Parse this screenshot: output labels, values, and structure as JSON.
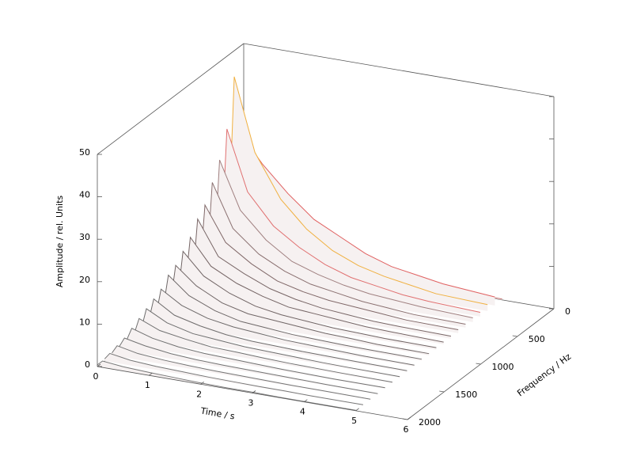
{
  "chart_data": {
    "type": "waterfall",
    "xlabel": "Time / s",
    "ylabel": "Frequency / Hz",
    "zlabel": "Amplitude / rel. Units",
    "xlim": [
      0,
      6
    ],
    "xticks": [
      0,
      1,
      2,
      3,
      4,
      5,
      6
    ],
    "ylim": [
      0,
      2000
    ],
    "yticks": [
      0,
      500,
      1000,
      1500,
      2000
    ],
    "zlim": [
      0,
      50
    ],
    "zticks": [
      0,
      10,
      20,
      30,
      40,
      50
    ],
    "x": [
      0,
      0.1,
      0.5,
      1,
      1.5,
      2,
      2.5,
      3,
      3.5,
      4,
      5
    ],
    "series": [
      {
        "frequency": 0,
        "color": "#c47070",
        "values": [
          1,
          3,
          2,
          1.5,
          1,
          0.8,
          0.6,
          0.5,
          0.4,
          0.3,
          0.2
        ]
      },
      {
        "frequency": 100,
        "color": "#e06060",
        "values": [
          10,
          30,
          24,
          18,
          13,
          10,
          7,
          5,
          4,
          3,
          2
        ]
      },
      {
        "frequency": 200,
        "color": "#f0b040",
        "values": [
          12,
          45,
          28,
          18,
          12,
          8,
          5.5,
          4,
          3,
          2,
          1.5
        ]
      },
      {
        "frequency": 300,
        "color": "#e07070",
        "values": [
          8,
          34,
          20,
          13,
          9,
          6,
          4,
          3,
          2,
          1.5,
          1
        ]
      },
      {
        "frequency": 400,
        "color": "#a08080",
        "values": [
          6,
          28,
          17,
          11,
          7,
          5,
          3.5,
          2.5,
          2,
          1.5,
          1
        ]
      },
      {
        "frequency": 500,
        "color": "#8a7070",
        "values": [
          5,
          24,
          14,
          9,
          6,
          4,
          3,
          2,
          1.5,
          1,
          0.8
        ]
      },
      {
        "frequency": 600,
        "color": "#806868",
        "values": [
          4,
          20,
          12,
          8,
          5,
          3.5,
          2.5,
          2,
          1.5,
          1,
          0.8
        ]
      },
      {
        "frequency": 700,
        "color": "#786666",
        "values": [
          3,
          18,
          10,
          7,
          4.5,
          3,
          2,
          1.5,
          1,
          0.8,
          0.6
        ]
      },
      {
        "frequency": 800,
        "color": "#746464",
        "values": [
          3,
          15,
          9,
          6,
          4,
          2.5,
          2,
          1.5,
          1,
          0.8,
          0.5
        ]
      },
      {
        "frequency": 900,
        "color": "#706464",
        "values": [
          2,
          13,
          8,
          5,
          3,
          2,
          1.5,
          1,
          0.8,
          0.6,
          0.5
        ]
      },
      {
        "frequency": 1000,
        "color": "#706666",
        "values": [
          2,
          11,
          7,
          4,
          2.5,
          2,
          1.5,
          1,
          0.8,
          0.5,
          0.4
        ]
      },
      {
        "frequency": 1100,
        "color": "#6e6868",
        "values": [
          2,
          10,
          6,
          3.5,
          2,
          1.5,
          1,
          0.8,
          0.6,
          0.5,
          0.4
        ]
      },
      {
        "frequency": 1200,
        "color": "#6e6a6a",
        "values": [
          1.5,
          8,
          5,
          3,
          2,
          1.5,
          1,
          0.8,
          0.6,
          0.4,
          0.3
        ]
      },
      {
        "frequency": 1300,
        "color": "#6e6c6c",
        "values": [
          1.5,
          7,
          4,
          2.5,
          1.5,
          1,
          0.8,
          0.6,
          0.5,
          0.4,
          0.3
        ]
      },
      {
        "frequency": 1400,
        "color": "#6e6e6e",
        "values": [
          1,
          6,
          3.5,
          2,
          1.5,
          1,
          0.8,
          0.6,
          0.4,
          0.3,
          0.2
        ]
      },
      {
        "frequency": 1500,
        "color": "#707070",
        "values": [
          1,
          5,
          3,
          2,
          1.2,
          1,
          0.7,
          0.5,
          0.4,
          0.3,
          0.2
        ]
      },
      {
        "frequency": 1600,
        "color": "#707070",
        "values": [
          1,
          4,
          2.5,
          1.5,
          1,
          0.8,
          0.6,
          0.4,
          0.3,
          0.2,
          0.2
        ]
      },
      {
        "frequency": 1700,
        "color": "#727272",
        "values": [
          0.8,
          3,
          2,
          1.2,
          0.8,
          0.6,
          0.5,
          0.4,
          0.3,
          0.2,
          0.1
        ]
      },
      {
        "frequency": 1800,
        "color": "#747474",
        "values": [
          0.6,
          2.5,
          1.5,
          1,
          0.7,
          0.5,
          0.4,
          0.3,
          0.2,
          0.2,
          0.1
        ]
      },
      {
        "frequency": 1900,
        "color": "#767676",
        "values": [
          0.5,
          2,
          1.2,
          0.8,
          0.6,
          0.4,
          0.3,
          0.2,
          0.2,
          0.1,
          0.1
        ]
      },
      {
        "frequency": 2000,
        "color": "#787878",
        "values": [
          0.4,
          1.5,
          1,
          0.7,
          0.5,
          0.3,
          0.2,
          0.2,
          0.1,
          0.1,
          0.1
        ]
      }
    ]
  }
}
